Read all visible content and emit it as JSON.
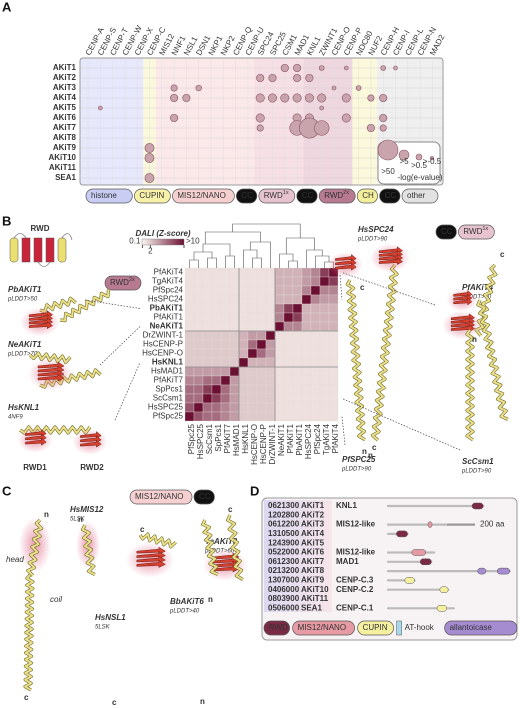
{
  "panel_a": {
    "label": "A",
    "columns": [
      "CENP-A",
      "CENP-S",
      "CENP-T",
      "CENP-W",
      "CENP-X",
      "CENP-C",
      "MIS12",
      "NNF1",
      "NSL1",
      "DSN1",
      "NKP1",
      "NKP2",
      "CENP-Q",
      "CENP-U",
      "SPC24",
      "SPC25",
      "CSM1",
      "MAD1",
      "KNL1",
      "ZWINT1",
      "CENP-O",
      "CENP-P",
      "NDC80",
      "NUF2",
      "CENP-H",
      "CENP-I",
      "CENP-L",
      "CENP-N",
      "MAD2"
    ],
    "rows": [
      "AKiT1",
      "AKiT2",
      "AKiT3",
      "AKiT4",
      "AKiT5",
      "AKiT6",
      "AKiT7",
      "AKiT8",
      "AKiT9",
      "AKiT10",
      "AKiT11",
      "SEA1"
    ],
    "cells": [
      [
        0,
        16,
        6
      ],
      [
        0,
        17,
        6
      ],
      [
        0,
        19,
        2
      ],
      [
        0,
        21,
        1
      ],
      [
        0,
        24,
        2
      ],
      [
        0,
        25,
        1
      ],
      [
        1,
        14,
        6
      ],
      [
        1,
        15,
        6
      ],
      [
        1,
        17,
        6
      ],
      [
        1,
        18,
        6
      ],
      [
        2,
        7,
        4
      ],
      [
        2,
        9,
        3
      ],
      [
        2,
        20,
        1
      ],
      [
        2,
        22,
        2
      ],
      [
        3,
        7,
        6
      ],
      [
        3,
        8,
        6
      ],
      [
        3,
        14,
        8
      ],
      [
        3,
        15,
        8
      ],
      [
        3,
        16,
        8
      ],
      [
        3,
        17,
        8
      ],
      [
        3,
        18,
        8
      ],
      [
        3,
        19,
        8
      ],
      [
        3,
        21,
        8
      ],
      [
        3,
        23,
        4
      ],
      [
        3,
        24,
        6
      ],
      [
        4,
        1,
        1
      ],
      [
        4,
        19,
        1
      ],
      [
        5,
        7,
        6
      ],
      [
        5,
        14,
        8
      ],
      [
        5,
        17,
        8
      ],
      [
        5,
        18,
        8
      ],
      [
        5,
        21,
        8
      ],
      [
        5,
        24,
        6
      ],
      [
        6,
        14,
        4
      ],
      [
        6,
        17,
        30
      ],
      [
        6,
        18,
        60
      ],
      [
        6,
        19,
        30
      ],
      [
        6,
        23,
        6
      ],
      [
        6,
        24,
        4
      ],
      [
        8,
        5,
        10
      ],
      [
        9,
        5,
        10
      ],
      [
        11,
        5,
        10
      ]
    ],
    "bubble_color": "#c9a4ad",
    "size_legend": [
      ">50",
      ">5",
      ">0.5",
      ">-0.5"
    ],
    "size_legend_title": "-log(e-value)",
    "groups": [
      {
        "label": "histone",
        "color": "#c9cdf3"
      },
      {
        "label": "CUPIN",
        "color": "#f7f0a8"
      },
      {
        "label": "MIS12/NANO",
        "color": "#f6d0d0"
      },
      {
        "label": "CC",
        "color": "#111111"
      },
      {
        "label": "RWD",
        "sup": "1x",
        "color": "#e7c3cf"
      },
      {
        "label": "CC",
        "color": "#111111"
      },
      {
        "label": "RWD",
        "sup": "2x",
        "color": "#b77a91"
      },
      {
        "label": "CH",
        "color": "#f3ee9c"
      },
      {
        "label": "CC",
        "color": "#111111"
      },
      {
        "label": "other",
        "color": "#e2e2e2"
      }
    ]
  },
  "panel_b": {
    "label": "B",
    "rwd_title": "RWD",
    "colorbar": {
      "title": "DALI (Z-score)",
      "ticks": [
        0.1,
        2,
        {
          "value": 10,
          "label": ">10"
        }
      ]
    },
    "rows": [
      "PfAKiT4",
      "TgAKiT4",
      "PfSpc24",
      "HsSPC24",
      "PbAKiT1",
      "PfAKiT1",
      "NeAKiT1",
      "DrZWINT-1",
      "HsCENP-P",
      "HsCENP-O",
      "HsKNL1",
      "HsMAD1",
      "PfAKiT7",
      "SpPcs1",
      "ScCsm1",
      "HsSPC25",
      "PfSpc25"
    ],
    "row_colors": [
      "#c98a9c",
      "#333333",
      "#333333",
      "#c98a9c",
      "#7a1f44",
      "#333333",
      "#7a1f44",
      "#333333",
      "#333333",
      "#333333",
      "#7a1f44",
      "#333333",
      "#333333",
      "#333333",
      "#c98a9c",
      "#333333",
      "#c98a9c"
    ],
    "columns": [
      "PfSpc25",
      "HsSPC25",
      "ScCsm1",
      "SpPcs1",
      "PfAKiT7",
      "HsMAD1",
      "HsKNL1",
      "HsCENP-O",
      "HsCENP-P",
      "DrZWINT-1",
      "NeAKiT1",
      "PfAKiT1",
      "PbAKiT1",
      "HsSPC24",
      "PfSpc24",
      "TgAKiT4",
      "PfAKiT4"
    ],
    "matrix": [
      [
        1,
        1,
        1,
        1,
        1,
        1,
        1,
        1,
        1,
        1,
        3,
        3,
        3,
        4,
        5,
        8,
        10
      ],
      [
        1,
        1,
        1,
        1,
        1,
        1,
        1,
        1,
        1,
        1,
        3,
        3,
        3,
        4,
        5,
        10,
        8
      ],
      [
        1,
        1,
        1,
        1,
        1,
        1,
        1,
        1,
        1,
        1,
        3,
        3,
        3,
        5,
        10,
        5,
        5
      ],
      [
        1,
        1,
        1,
        1,
        1,
        1,
        1,
        1,
        1,
        1,
        3,
        3,
        3,
        10,
        5,
        4,
        4
      ],
      [
        1,
        1,
        1,
        1,
        1,
        1,
        1,
        1,
        1,
        1,
        5,
        8,
        10,
        3,
        3,
        3,
        3
      ],
      [
        1,
        1,
        1,
        1,
        1,
        1,
        1,
        1,
        1,
        1,
        5,
        10,
        8,
        3,
        3,
        3,
        3
      ],
      [
        1,
        1,
        1,
        1,
        1,
        1,
        1,
        1,
        1,
        1,
        10,
        5,
        5,
        3,
        3,
        3,
        3
      ],
      [
        2,
        2,
        2,
        2,
        2,
        2,
        3,
        4,
        4,
        10,
        1,
        1,
        1,
        1,
        1,
        1,
        1
      ],
      [
        2,
        2,
        2,
        2,
        2,
        2,
        3,
        6,
        10,
        4,
        1,
        1,
        1,
        1,
        1,
        1,
        1
      ],
      [
        2,
        2,
        2,
        2,
        2,
        2,
        3,
        10,
        6,
        4,
        1,
        1,
        1,
        1,
        1,
        1,
        1
      ],
      [
        2,
        2,
        2,
        2,
        2,
        2,
        10,
        3,
        3,
        3,
        1,
        1,
        1,
        1,
        1,
        1,
        1
      ],
      [
        4,
        4,
        4,
        4,
        4,
        10,
        2,
        2,
        2,
        2,
        1,
        1,
        1,
        1,
        1,
        1,
        1
      ],
      [
        5,
        5,
        6,
        6,
        10,
        4,
        2,
        2,
        2,
        2,
        1,
        1,
        1,
        1,
        1,
        1,
        1
      ],
      [
        6,
        6,
        8,
        10,
        6,
        4,
        2,
        2,
        2,
        2,
        1,
        1,
        1,
        1,
        1,
        1,
        1
      ],
      [
        6,
        6,
        10,
        8,
        6,
        4,
        2,
        2,
        2,
        2,
        1,
        1,
        1,
        1,
        1,
        1,
        1
      ],
      [
        7,
        10,
        6,
        6,
        5,
        4,
        2,
        2,
        2,
        2,
        1,
        1,
        1,
        1,
        1,
        1,
        1
      ],
      [
        10,
        7,
        6,
        6,
        5,
        4,
        2,
        2,
        2,
        2,
        1,
        1,
        1,
        1,
        1,
        1,
        1
      ]
    ],
    "low_color": "#fbf7f1",
    "high_color": "#6b1033",
    "structures": [
      {
        "name": "PbAKiT1",
        "note": "pLDDT>50"
      },
      {
        "name": "NeAKiT1",
        "note": "pLDDT>70"
      },
      {
        "name": "HsKNL1",
        "note": "4NF9"
      },
      {
        "name": "HsSPC24",
        "note": "pLDDT>90"
      },
      {
        "name": "PfAKiT4",
        "note": "pLDDT>60"
      },
      {
        "name": "PfSPC25",
        "note": "pLDDT>90"
      },
      {
        "name": "ScCsm1",
        "note": "pLDDT>90"
      }
    ],
    "tags": {
      "rwd2x": "RWD",
      "rwd2x_sup": "2x",
      "cc": "CC",
      "rwd1x": "RWD",
      "rwd1x_sup": "1x"
    },
    "knl1_domains": [
      "RWD1",
      "RWD2"
    ],
    "termini": [
      "c",
      "n",
      "c",
      "n",
      "c",
      "n"
    ]
  },
  "panel_c": {
    "label": "C",
    "tag": "MIS12/NANO",
    "tag_cc": "CC",
    "structures": [
      {
        "name": "HsMIS12",
        "note": "5LSK"
      },
      {
        "name": "HsNSL1",
        "note": "5LSK"
      },
      {
        "name": "BbAKiT6",
        "note": "pLDDT>40"
      },
      {
        "name": "TaAKiT3",
        "note": "pLDDT>60"
      }
    ],
    "annotations": [
      "head",
      "coil"
    ],
    "termini": [
      "n",
      "c",
      "n",
      "c",
      "c",
      "n",
      "c",
      "n"
    ]
  },
  "panel_d": {
    "label": "D",
    "scale_label": "200 aa",
    "scale_aa": 200,
    "rows": [
      {
        "id": "0621300",
        "name": "AKiT1",
        "note": "KNL1",
        "length": 680,
        "domains": [
          {
            "start": 600,
            "end": 680,
            "color": "#7a2a45"
          }
        ]
      },
      {
        "id": "1202800",
        "name": "AKiT2"
      },
      {
        "id": "0612200",
        "name": "AKiT3",
        "note": "MIS12-like",
        "length": 420,
        "domains": [
          {
            "start": 285,
            "end": 315,
            "color": "#e69aa3"
          }
        ]
      },
      {
        "id": "1310500",
        "name": "AKiT4",
        "length": 140,
        "domains": [
          {
            "start": 60,
            "end": 140,
            "color": "#7a2a45"
          }
        ]
      },
      {
        "id": "1243900",
        "name": "AKiT5"
      },
      {
        "id": "0522000",
        "name": "AKiT6",
        "note": "MIS12-like",
        "length": 330,
        "domains": [
          {
            "start": 170,
            "end": 270,
            "color": "#e69aa3"
          }
        ]
      },
      {
        "id": "0612300",
        "name": "AKiT7",
        "note": "MAD1",
        "length": 310,
        "domains": [
          {
            "start": 230,
            "end": 310,
            "color": "#7a2a45"
          }
        ]
      },
      {
        "id": "0213200",
        "name": "AKiT8",
        "length": 870,
        "domains": [
          {
            "start": 640,
            "end": 700,
            "color": "#a58bd0"
          },
          {
            "start": 780,
            "end": 870,
            "color": "#a58bd0"
          }
        ]
      },
      {
        "id": "1307000",
        "name": "AKiT9",
        "note": "CENP-C.3",
        "length": 190,
        "domains": [
          {
            "start": 120,
            "end": 190,
            "color": "#f5efa0"
          }
        ]
      },
      {
        "id": "0406000",
        "name": "AKiT10",
        "note": "CENP-C.2",
        "length": 430,
        "domains": [
          {
            "start": 370,
            "end": 430,
            "color": "#f5efa0"
          }
        ]
      },
      {
        "id": "0803900",
        "name": "AKiT11"
      },
      {
        "id": "0506000",
        "name": "SEA1",
        "note": "CENP-C.1",
        "length": 470,
        "domains": [
          {
            "start": 350,
            "end": 420,
            "color": "#f5efa0"
          }
        ]
      }
    ],
    "legend": [
      {
        "label": "RWD",
        "color": "#7a2a45"
      },
      {
        "label": "MIS12/NANO",
        "color": "#e69aa3"
      },
      {
        "label": "CUPIN",
        "color": "#f5efa0"
      },
      {
        "label": "AT-hook",
        "color": "#a8d8ee"
      },
      {
        "label": "allantoicase",
        "color": "#a58bd0"
      }
    ]
  }
}
